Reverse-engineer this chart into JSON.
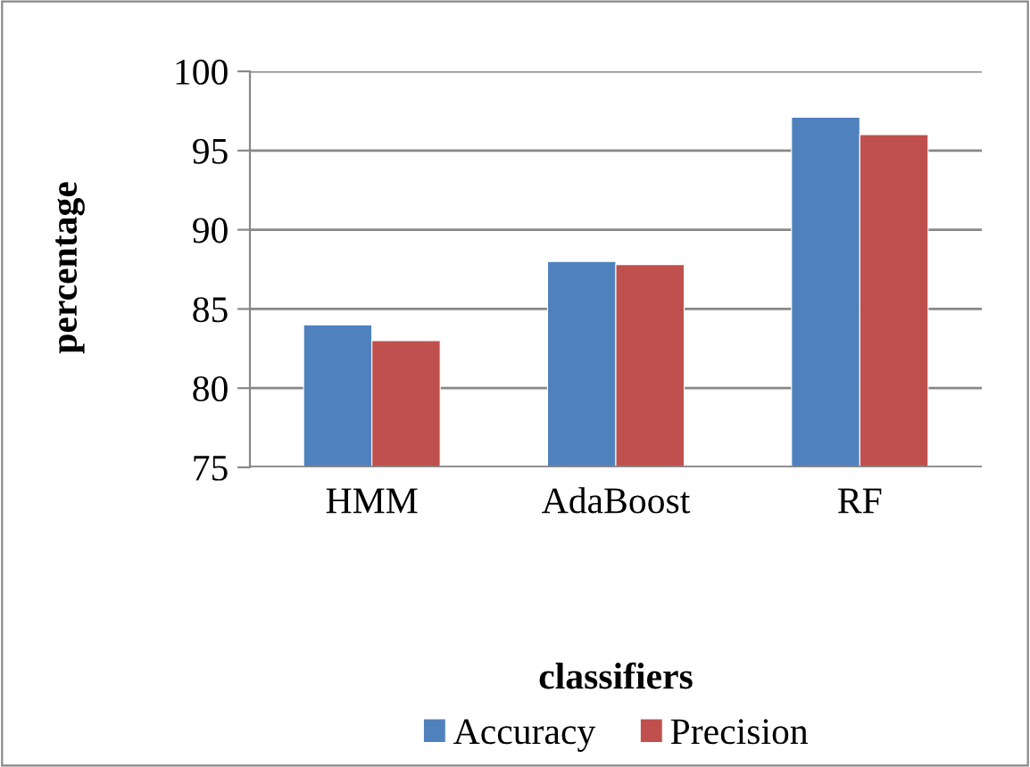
{
  "chart_data": {
    "type": "bar",
    "xlabel": "classifiers",
    "ylabel": "percentage",
    "categories": [
      "HMM",
      "AdaBoost",
      "RF"
    ],
    "series": [
      {
        "name": "Accuracy",
        "color": "#4f81bd",
        "values": [
          84.0,
          88.0,
          97.1
        ]
      },
      {
        "name": "Precision",
        "color": "#c0504d",
        "values": [
          83.0,
          87.8,
          96.0
        ]
      }
    ],
    "ylim": [
      75,
      100
    ],
    "yticks": [
      75,
      80,
      85,
      90,
      95,
      100
    ],
    "grid": "y",
    "legend": "bottom"
  }
}
